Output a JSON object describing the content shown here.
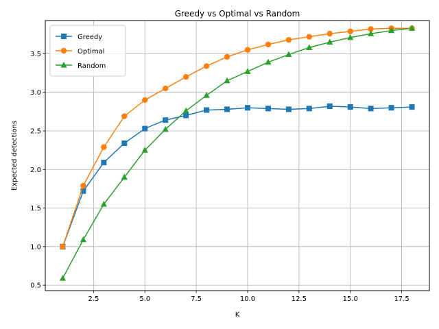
{
  "chart_data": {
    "type": "line",
    "title": "Greedy vs Optimal vs Random",
    "xlabel": "K",
    "ylabel": "Expected detections",
    "xlim": [
      0.15,
      18.85
    ],
    "ylim": [
      0.43,
      3.93
    ],
    "x_ticks": [
      2.5,
      5.0,
      7.5,
      10.0,
      12.5,
      15.0,
      17.5
    ],
    "x_tick_labels": [
      "2.5",
      "5.0",
      "7.5",
      "10.0",
      "12.5",
      "15.0",
      "17.5"
    ],
    "y_ticks": [
      0.5,
      1.0,
      1.5,
      2.0,
      2.5,
      3.0,
      3.5
    ],
    "y_tick_labels": [
      "0.5",
      "1.0",
      "1.5",
      "2.0",
      "2.5",
      "3.0",
      "3.5"
    ],
    "grid": true,
    "legend_position": "upper-left",
    "x": [
      1,
      2,
      3,
      4,
      5,
      6,
      7,
      8,
      9,
      10,
      11,
      12,
      13,
      14,
      15,
      16,
      17,
      18
    ],
    "series": [
      {
        "name": "Greedy",
        "color": "#1f77b4",
        "marker": "square",
        "values": [
          1.0,
          1.72,
          2.09,
          2.34,
          2.53,
          2.64,
          2.7,
          2.77,
          2.78,
          2.8,
          2.79,
          2.78,
          2.79,
          2.82,
          2.81,
          2.79,
          2.8,
          2.81
        ]
      },
      {
        "name": "Optimal",
        "color": "#ff7f0e",
        "marker": "circle",
        "values": [
          1.0,
          1.79,
          2.29,
          2.69,
          2.9,
          3.05,
          3.2,
          3.34,
          3.46,
          3.55,
          3.62,
          3.68,
          3.72,
          3.76,
          3.79,
          3.82,
          3.83,
          3.83
        ]
      },
      {
        "name": "Random",
        "color": "#2ca02c",
        "marker": "triangle",
        "values": [
          0.59,
          1.09,
          1.55,
          1.9,
          2.25,
          2.52,
          2.76,
          2.96,
          3.15,
          3.27,
          3.39,
          3.49,
          3.58,
          3.65,
          3.71,
          3.76,
          3.8,
          3.83
        ]
      }
    ]
  }
}
